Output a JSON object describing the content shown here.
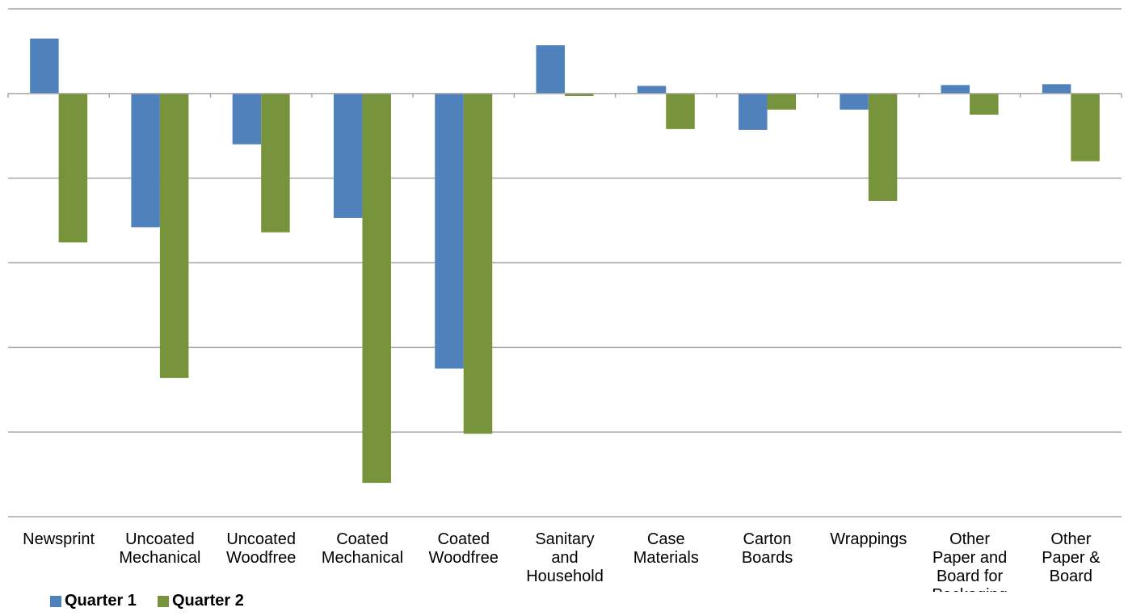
{
  "chart_data": {
    "type": "bar",
    "categories": [
      [
        "Newsprint"
      ],
      [
        "Uncoated",
        "Mechanical"
      ],
      [
        "Uncoated",
        "Woodfree"
      ],
      [
        "Coated",
        "Mechanical"
      ],
      [
        "Coated",
        "Woodfree"
      ],
      [
        "Sanitary",
        "and",
        "Household"
      ],
      [
        "Case",
        "Materials"
      ],
      [
        "Carton",
        "Boards"
      ],
      [
        "Wrappings"
      ],
      [
        "Other",
        "Paper and",
        "Board for",
        "Packaging"
      ],
      [
        "Other",
        "Paper &",
        "Board"
      ]
    ],
    "series": [
      {
        "name": "Quarter 1",
        "color": "#4f81bd",
        "values": [
          0.65,
          -1.58,
          -0.6,
          -1.47,
          -3.25,
          0.57,
          0.09,
          -0.43,
          -0.19,
          0.1,
          0.11
        ]
      },
      {
        "name": "Quarter 2",
        "color": "#77933c",
        "values": [
          -1.76,
          -3.36,
          -1.64,
          -4.6,
          -4.02,
          -0.03,
          -0.42,
          -0.19,
          -1.27,
          -0.25,
          -0.8
        ]
      }
    ],
    "ylim": [
      -5,
      1
    ],
    "grid": true,
    "legend": "bottom-left"
  }
}
